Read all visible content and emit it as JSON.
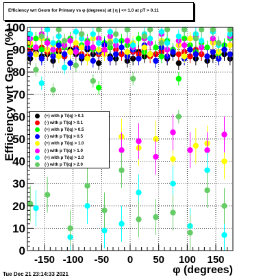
{
  "title": "Efficiency wrt Geom for Primary vs φ (degrees) at | η | <= 1.0 at pT > 0.11",
  "xlabel": "φ (degrees)",
  "ylabel": "Efficiency wrt Geom (%)",
  "timestamp": "Tue Dec 21 23:14:33 2021",
  "legend": {
    "entries": [
      {
        "label": "(+) with p T/|q| > 0.1",
        "color": "#000000"
      },
      {
        "label": "(-) with p T/|q| > 0.1",
        "color": "#ff0000"
      },
      {
        "label": "(+) with p T/|q| > 0.5",
        "color": "#00ff00"
      },
      {
        "label": "(-) with p T/|q| > 0.5",
        "color": "#0000ff"
      },
      {
        "label": "(+) with p T/|q| > 1.0",
        "color": "#ffff00"
      },
      {
        "label": "(-) with p T/|q| > 1.0",
        "color": "#ff00ff"
      },
      {
        "label": "(+) with p T/|q| > 2.0",
        "color": "#00ffff"
      },
      {
        "label": "(-) with p T/|q| > 2.0",
        "color": "#66cc66"
      }
    ]
  },
  "chart_data": {
    "type": "scatter",
    "xlim": [
      -180,
      180
    ],
    "ylim": [
      0,
      100
    ],
    "xticks": [
      -150,
      -100,
      -50,
      0,
      50,
      100,
      150
    ],
    "yticks": [
      0,
      10,
      20,
      30,
      40,
      50,
      60,
      70,
      80,
      90,
      100
    ],
    "grid": true,
    "legend_position": "left-middle",
    "series": [
      {
        "name": "(+) with p T/|q| > 0.1",
        "color": "#000000",
        "x": [
          -175,
          -165,
          -155,
          -145,
          -135,
          -125,
          -115,
          -105,
          -95,
          -85,
          -75,
          -65,
          -55,
          -45,
          -35,
          -25,
          -15,
          -5,
          5,
          15,
          25,
          35,
          45,
          55,
          65,
          75,
          85,
          95,
          105,
          115,
          125,
          135,
          145,
          155,
          165,
          175
        ],
        "y": [
          86,
          89,
          87,
          88,
          85,
          89,
          87,
          90,
          88,
          86,
          90,
          88,
          84,
          89,
          87,
          86,
          88,
          85,
          86,
          89,
          87,
          88,
          85,
          89,
          86,
          88,
          84,
          89,
          87,
          86,
          88,
          85,
          87,
          86,
          88,
          86
        ]
      },
      {
        "name": "(-) with p T/|q| > 0.1",
        "color": "#ff0000",
        "x": [
          -175,
          -165,
          -155,
          -145,
          -135,
          -125,
          -115,
          -105,
          -95,
          -85,
          -75,
          -65,
          -55,
          -45,
          -35,
          -25,
          -15,
          -5,
          5,
          15,
          25,
          35,
          45,
          55,
          65,
          75,
          85,
          95,
          105,
          115,
          125,
          135,
          145,
          155,
          165,
          175
        ],
        "y": [
          90,
          88,
          91,
          89,
          88,
          90,
          87,
          89,
          91,
          88,
          87,
          90,
          88,
          89,
          86,
          90,
          88,
          87,
          89,
          88,
          90,
          87,
          88,
          89,
          87,
          90,
          88,
          89,
          87,
          90,
          88,
          87,
          89,
          88,
          90,
          88
        ]
      },
      {
        "name": "(+) with p T/|q| > 0.5",
        "color": "#00ff00",
        "x": [
          -175,
          -165,
          -155,
          -145,
          -135,
          -125,
          -115,
          -105,
          -95,
          -85,
          -75,
          -65,
          -55,
          -45,
          -35,
          -25,
          -15,
          -5,
          5,
          15,
          25,
          35,
          45,
          55,
          65,
          75,
          85,
          95,
          105,
          115,
          125,
          135,
          145,
          155,
          165,
          175
        ],
        "y": [
          92,
          95,
          90,
          94,
          88,
          93,
          91,
          95,
          89,
          92,
          94,
          90,
          73,
          93,
          91,
          88,
          94,
          92,
          90,
          95,
          89,
          93,
          91,
          87,
          94,
          90,
          77,
          95,
          92,
          89,
          93,
          91,
          94,
          88,
          92,
          95
        ]
      },
      {
        "name": "(-) with p T/|q| > 0.5",
        "color": "#0000ff",
        "x": [
          -175,
          -165,
          -155,
          -145,
          -135,
          -125,
          -115,
          -105,
          -95,
          -85,
          -75,
          -65,
          -55,
          -45,
          -35,
          -25,
          -15,
          -5,
          5,
          15,
          25,
          35,
          45,
          55,
          65,
          75,
          85,
          95,
          105,
          115,
          125,
          135,
          145,
          155,
          165,
          175
        ],
        "y": [
          88,
          91,
          86,
          90,
          87,
          92,
          88,
          84,
          90,
          87,
          91,
          85,
          89,
          92,
          86,
          88,
          91,
          87,
          90,
          86,
          92,
          88,
          85,
          91,
          87,
          89,
          92,
          86,
          90,
          88,
          91,
          87,
          89,
          86,
          90,
          88
        ]
      },
      {
        "name": "(+) with p T/|q| > 1.0",
        "color": "#ffff00",
        "x": [
          -175,
          -165,
          -155,
          -145,
          -135,
          -125,
          -115,
          -105,
          -95,
          -85,
          -75,
          -65,
          -55,
          -45,
          -35,
          -25,
          -15,
          -5,
          5,
          15,
          25,
          35,
          45,
          55,
          65,
          75,
          85,
          95,
          105,
          115,
          125,
          135,
          145,
          155,
          165,
          175
        ],
        "y": [
          93,
          88,
          95,
          90,
          92,
          87,
          94,
          89,
          93,
          91,
          86,
          95,
          90,
          88,
          94,
          92,
          51,
          89,
          93,
          46,
          91,
          88,
          50,
          94,
          90,
          41,
          92,
          87,
          95,
          47,
          91,
          48,
          93,
          89,
          40,
          92
        ]
      },
      {
        "name": "(-) with p T/|q| > 1.0",
        "color": "#ff00ff",
        "x": [
          -175,
          -165,
          -155,
          -145,
          -135,
          -125,
          -115,
          -105,
          -95,
          -85,
          -75,
          -65,
          -55,
          -45,
          -35,
          -25,
          -15,
          -5,
          5,
          15,
          25,
          35,
          45,
          55,
          65,
          75,
          85,
          95,
          105,
          115,
          125,
          135,
          145,
          155,
          165,
          175
        ],
        "y": [
          95,
          91,
          97,
          93,
          90,
          96,
          92,
          94,
          89,
          97,
          93,
          91,
          95,
          90,
          96,
          92,
          45,
          94,
          91,
          49,
          95,
          93,
          42,
          97,
          90,
          53,
          94,
          92,
          45,
          96,
          91,
          45,
          95,
          93,
          52,
          96
        ]
      },
      {
        "name": "(+) with p T/|q| > 2.0",
        "color": "#00ffff",
        "x": [
          -175,
          -165,
          -155,
          -145,
          -135,
          -125,
          -115,
          -105,
          -95,
          -85,
          -75,
          -65,
          -55,
          -45,
          -35,
          -25,
          -15,
          -5,
          5,
          15,
          25,
          35,
          45,
          55,
          65,
          75,
          85,
          95,
          105,
          115,
          125,
          135,
          145,
          155,
          165,
          175
        ],
        "y": [
          97,
          19,
          75,
          99,
          93,
          96,
          82,
          6,
          98,
          95,
          20,
          97,
          93,
          9,
          98,
          94,
          12,
          99,
          92,
          26,
          97,
          95,
          15,
          98,
          93,
          30,
          96,
          99,
          11,
          97,
          94,
          36,
          98,
          92,
          7,
          97
        ]
      },
      {
        "name": "(-) with p T/|q| > 2.0",
        "color": "#66cc66",
        "x": [
          -175,
          -165,
          -155,
          -145,
          -135,
          -125,
          -115,
          -105,
          -95,
          -85,
          -75,
          -65,
          -55,
          -45,
          -35,
          -25,
          -15,
          -5,
          5,
          15,
          25,
          35,
          45,
          55,
          65,
          75,
          85,
          95,
          105,
          115,
          125,
          135,
          145,
          155,
          165,
          175
        ],
        "y": [
          21,
          81,
          96,
          25,
          72,
          99,
          94,
          10,
          83,
          97,
          29,
          76,
          99,
          18,
          93,
          97,
          36,
          99,
          77,
          14,
          96,
          99,
          15,
          93,
          99,
          17,
          60,
          99,
          8,
          95,
          99,
          27,
          99,
          93,
          20,
          99
        ]
      }
    ]
  }
}
